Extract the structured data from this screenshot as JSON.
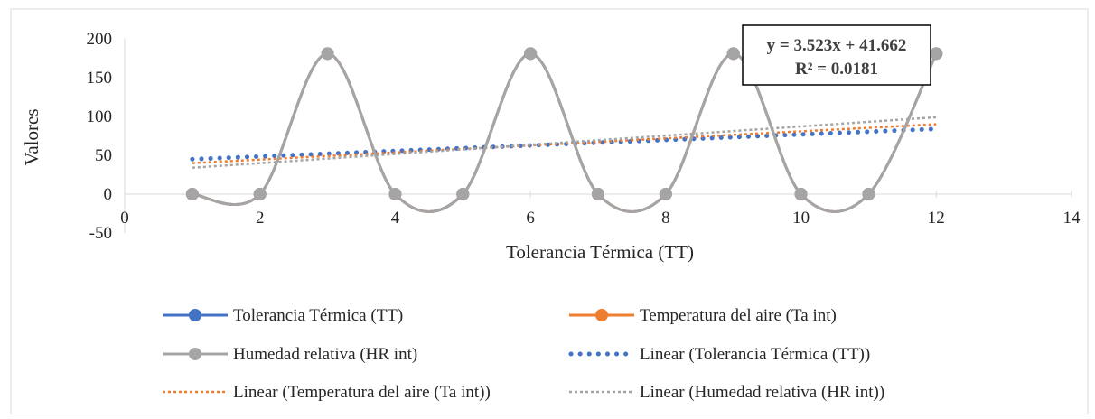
{
  "chart_data": {
    "type": "line",
    "xlabel": "Tolerancia Térmica (TT)",
    "ylabel": "Valores",
    "xlim": [
      0,
      14
    ],
    "ylim": [
      -50,
      200
    ],
    "x_ticks": [
      0,
      2,
      4,
      6,
      8,
      10,
      12,
      14
    ],
    "y_ticks": [
      -50,
      0,
      50,
      100,
      150,
      200
    ],
    "grid": false,
    "legend_position": "bottom",
    "x": [
      1,
      2,
      3,
      4,
      5,
      6,
      7,
      8,
      9,
      10,
      11,
      12
    ],
    "series": [
      {
        "name": "Tolerancia Térmica (TT)",
        "color": "#4472C4",
        "style": "smooth-line-markers",
        "values": [
          0,
          0,
          181,
          0,
          0,
          181,
          0,
          0,
          181,
          0,
          0,
          181
        ]
      },
      {
        "name": "Temperatura del aire (Ta int)",
        "color": "#ED7D31",
        "style": "smooth-line-markers",
        "values": [
          0,
          0,
          181,
          0,
          0,
          181,
          0,
          0,
          181,
          0,
          0,
          181
        ]
      },
      {
        "name": "Humedad relativa (HR int)",
        "color": "#A5A5A5",
        "style": "smooth-line-markers",
        "values": [
          0,
          0,
          181,
          0,
          0,
          181,
          0,
          0,
          181,
          0,
          0,
          181
        ]
      }
    ],
    "trendlines": [
      {
        "name": "Linear (Tolerancia Térmica (TT))",
        "color": "#4472C4",
        "style": "round-dot",
        "y_start": 45,
        "y_end": 84
      },
      {
        "name": "Linear (Temperatura del aire (Ta int))",
        "color": "#ED7D31",
        "style": "square-dot",
        "y_start": 40,
        "y_end": 90
      },
      {
        "name": "Linear (Humedad relativa (HR int))",
        "color": "#A5A5A5",
        "style": "square-dot",
        "y_start": 34,
        "y_end": 99
      }
    ],
    "annotation": {
      "equation": "y = 3.523x + 41.662",
      "r_squared": "R² = 0.0181"
    }
  }
}
